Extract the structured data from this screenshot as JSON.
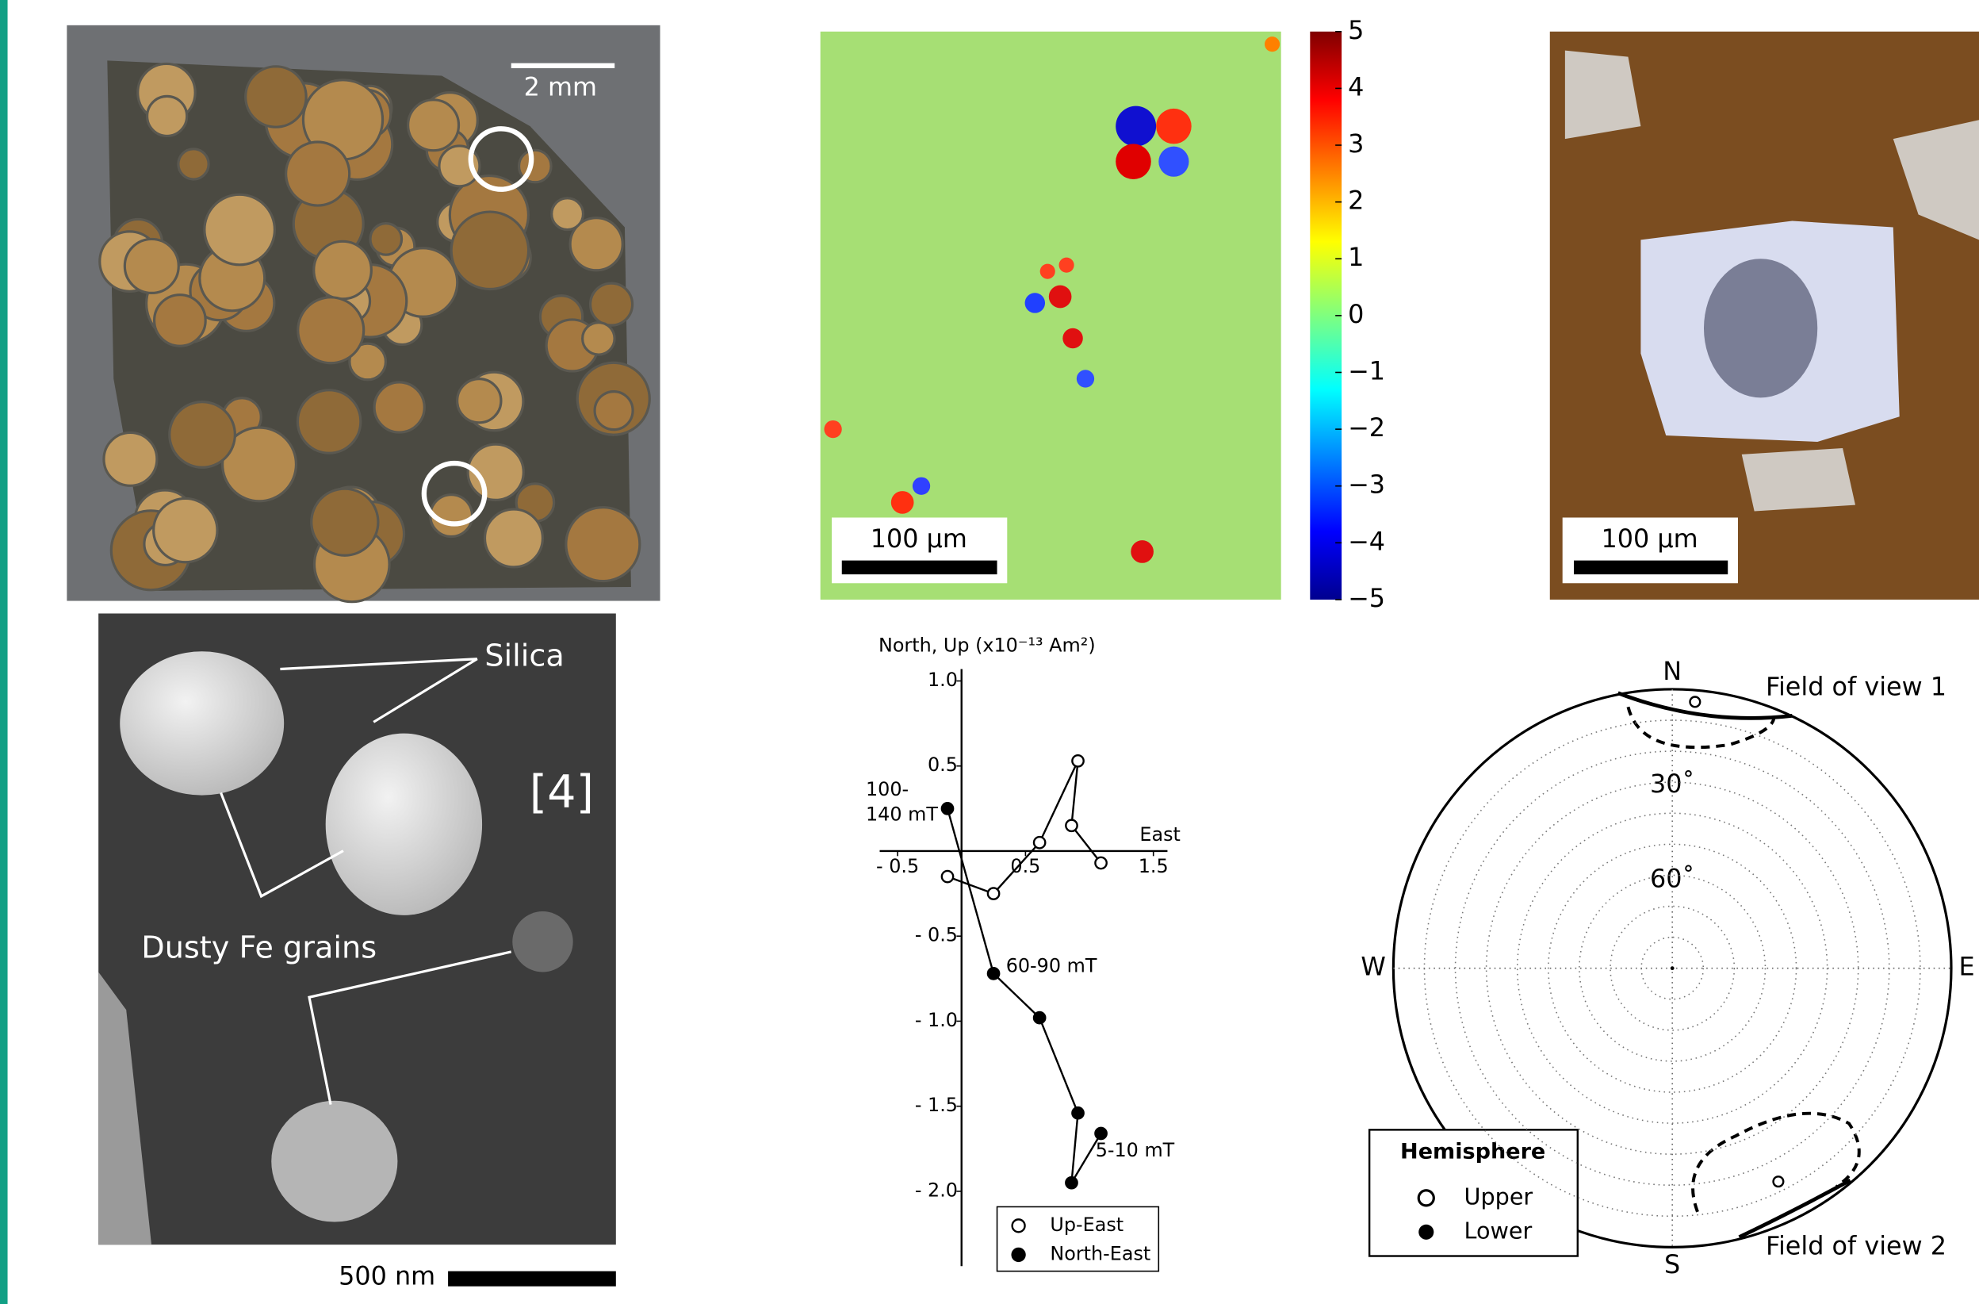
{
  "panel_a": {
    "scale_label": "2 mm"
  },
  "panel_b": {
    "scale_label": "100 µm",
    "colorbar_ticks": [
      "5",
      "4",
      "3",
      "2",
      "1",
      "0",
      "−1",
      "−2",
      "−3",
      "−4",
      "−5"
    ]
  },
  "panel_c": {
    "scale_label": "100 µm"
  },
  "panel_d": {
    "labels": [
      "Silica",
      "[4]",
      "Dusty Fe grains"
    ],
    "scale_label": "500 nm"
  },
  "chart_data": {
    "type": "line",
    "y_label": "North, Up (x10⁻¹³ Am²)",
    "x_label": "East",
    "xlim": [
      -0.64,
      1.61
    ],
    "ylim": [
      -2.44,
      1.07
    ],
    "xticks": [
      {
        "value": -0.5,
        "label": "- 0.5"
      },
      0.5,
      1.5
    ],
    "yticks": [
      {
        "value": 1,
        "label": "1.0"
      },
      0.5,
      {
        "value": -0.5,
        "label": "- 0.5"
      },
      {
        "value": -1,
        "label": "- 1.0"
      },
      {
        "value": -1.5,
        "label": "- 1.5"
      },
      {
        "value": -2,
        "label": "- 2.0"
      }
    ],
    "series": [
      {
        "name": "Up-East",
        "marker": "open",
        "color": "#000000",
        "x": [
          -0.11,
          0.25,
          0.61,
          0.91,
          0.86,
          1.09
        ],
        "values": [
          -0.15,
          -0.25,
          0.05,
          0.53,
          0.15,
          -0.07
        ]
      },
      {
        "name": "North-East",
        "marker": "filled",
        "color": "#000000",
        "x": [
          -0.11,
          0.25,
          0.61,
          0.91,
          0.86,
          1.09
        ],
        "values": [
          0.25,
          -0.72,
          -0.98,
          -1.54,
          -1.95,
          -1.66
        ]
      }
    ],
    "annotations": [
      [
        "100-",
        "140 mT"
      ],
      [
        "60-90 mT"
      ],
      [
        "5-10 mT"
      ]
    ]
  },
  "stereonet": {
    "directions": [
      "N",
      "E",
      "S",
      "W"
    ],
    "ring_labels": [
      "30˚",
      "60˚"
    ],
    "annotations": [
      "Field of view 1",
      "Field of view 2"
    ],
    "legend": {
      "title": "Hemisphere",
      "items": [
        "Upper",
        "Lower"
      ]
    }
  }
}
